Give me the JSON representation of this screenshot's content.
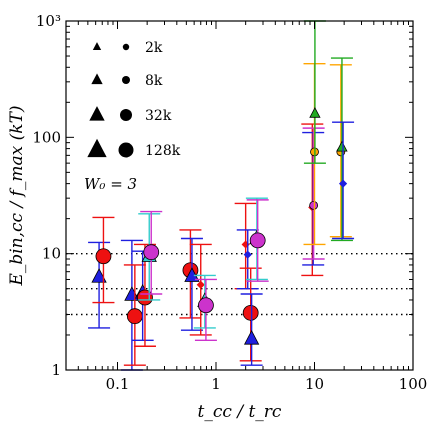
{
  "chart_data": {
    "type": "scatter",
    "x_scale": "log",
    "y_scale": "log",
    "xlim": [
      0.03,
      100
    ],
    "ylim": [
      1,
      1000
    ],
    "xlabel": "t_cc / t_rc",
    "ylabel": "E_bin,cc / f_max (kT)",
    "x_tick_labels": [
      {
        "value": 0.1,
        "label": "0.1"
      },
      {
        "value": 1,
        "label": "1"
      },
      {
        "value": 10,
        "label": "10"
      },
      {
        "value": 100,
        "label": "100"
      }
    ],
    "y_tick_labels": [
      {
        "value": 1,
        "label": "1"
      },
      {
        "value": 10,
        "label": "10"
      },
      {
        "value": 100,
        "label": "100"
      },
      {
        "value": 1000,
        "label": "10³"
      }
    ],
    "reference_lines": [
      3,
      5,
      10
    ],
    "annotation": "W₀ = 3",
    "legend": {
      "placement": "top-left",
      "entries": [
        {
          "label": "2k",
          "size": 1
        },
        {
          "label": "8k",
          "size": 2
        },
        {
          "label": "32k",
          "size": 3
        },
        {
          "label": "128k",
          "size": 4
        }
      ]
    },
    "points": [
      {
        "x": 0.065,
        "y": 6.3,
        "lo": 2.3,
        "hi": 12.5,
        "marker": "triangle",
        "size": 3,
        "color": "#1f1fdf"
      },
      {
        "x": 0.072,
        "y": 9.5,
        "lo": 3.8,
        "hi": 20.5,
        "marker": "circle",
        "size": 4,
        "color": "#ee1111"
      },
      {
        "x": 0.14,
        "y": 4.4,
        "lo": 1.0,
        "hi": 13.0,
        "marker": "triangle",
        "size": 3,
        "color": "#1f1fdf"
      },
      {
        "x": 0.15,
        "y": 2.9,
        "lo": 1.1,
        "hi": 8.0,
        "marker": "circle",
        "size": 4,
        "color": "#ee1111"
      },
      {
        "x": 0.18,
        "y": 4.6,
        "lo": 1.8,
        "hi": 10.5,
        "marker": "triangle",
        "size": 3,
        "color": "#1f1fdf"
      },
      {
        "x": 0.19,
        "y": 4.2,
        "lo": 1.6,
        "hi": 12.0,
        "marker": "circle",
        "size": 4,
        "color": "#ee1111"
      },
      {
        "x": 0.21,
        "y": 9.5,
        "lo": 4.0,
        "hi": 22.0,
        "marker": "triangle",
        "size": 3,
        "color": "#33cccc"
      },
      {
        "x": 0.22,
        "y": 10.3,
        "lo": 4.5,
        "hi": 23.0,
        "marker": "circle",
        "size": 4,
        "color": "#cc33cc"
      },
      {
        "x": 0.55,
        "y": 7.2,
        "lo": 2.8,
        "hi": 16.0,
        "marker": "circle",
        "size": 4,
        "color": "#ee1111"
      },
      {
        "x": 0.57,
        "y": 6.4,
        "lo": 2.2,
        "hi": 13.5,
        "marker": "triangle",
        "size": 3,
        "color": "#1f1fdf"
      },
      {
        "x": 0.7,
        "y": 5.4,
        "lo": 2.0,
        "hi": 12.0,
        "marker": "dot",
        "size": 1,
        "color": "#ee1111"
      },
      {
        "x": 0.77,
        "y": 3.9,
        "lo": 2.3,
        "hi": 6.5,
        "marker": "triangle",
        "size": 3,
        "color": "#33cccc"
      },
      {
        "x": 0.79,
        "y": 3.6,
        "lo": 1.8,
        "hi": 6.0,
        "marker": "circle",
        "size": 4,
        "color": "#cc33cc"
      },
      {
        "x": 2.0,
        "y": 12.0,
        "lo": 5.0,
        "hi": 27.0,
        "marker": "dot",
        "size": 1,
        "color": "#ee1111"
      },
      {
        "x": 2.1,
        "y": 9.8,
        "lo": 5.0,
        "hi": 16.0,
        "marker": "dot",
        "size": 1,
        "color": "#1f1fdf"
      },
      {
        "x": 2.25,
        "y": 3.1,
        "lo": 1.2,
        "hi": 7.5,
        "marker": "circle",
        "size": 4,
        "color": "#ee1111"
      },
      {
        "x": 2.3,
        "y": 1.85,
        "lo": 1.1,
        "hi": 4.5,
        "marker": "triangle",
        "size": 3,
        "color": "#1f1fdf"
      },
      {
        "x": 2.6,
        "y": 13.5,
        "lo": 6.0,
        "hi": 30.0,
        "marker": "triangle",
        "size": 3,
        "color": "#33cccc"
      },
      {
        "x": 2.65,
        "y": 13.0,
        "lo": 5.8,
        "hi": 29.0,
        "marker": "circle",
        "size": 4,
        "color": "#cc33cc"
      },
      {
        "x": 9.5,
        "y": 25.0,
        "lo": 6.5,
        "hi": 130.0,
        "marker": "dot",
        "size": 1,
        "color": "#ee1111"
      },
      {
        "x": 9.7,
        "y": 25.5,
        "lo": 8.0,
        "hi": 110.0,
        "marker": "dot",
        "size": 1,
        "color": "#1f1fdf"
      },
      {
        "x": 9.8,
        "y": 26.0,
        "lo": 9.0,
        "hi": 120.0,
        "marker": "circle",
        "size": 2,
        "color": "#cc33cc"
      },
      {
        "x": 10.0,
        "y": 75.0,
        "lo": 12.0,
        "hi": 430.0,
        "marker": "circle",
        "size": 2,
        "color": "#ffa500"
      },
      {
        "x": 10.1,
        "y": 160.0,
        "lo": 60.0,
        "hi": 1000.0,
        "marker": "triangle",
        "size": 2,
        "color": "#22aa22"
      },
      {
        "x": 18.5,
        "y": 75.0,
        "lo": 14.0,
        "hi": 420.0,
        "marker": "circle",
        "size": 2,
        "color": "#ffa500"
      },
      {
        "x": 19.0,
        "y": 82.0,
        "lo": 13.0,
        "hi": 480.0,
        "marker": "triangle",
        "size": 2,
        "color": "#22aa22"
      },
      {
        "x": 19.5,
        "y": 40.0,
        "lo": 13.5,
        "hi": 135.0,
        "marker": "dot",
        "size": 1,
        "color": "#1f1fdf"
      }
    ]
  }
}
